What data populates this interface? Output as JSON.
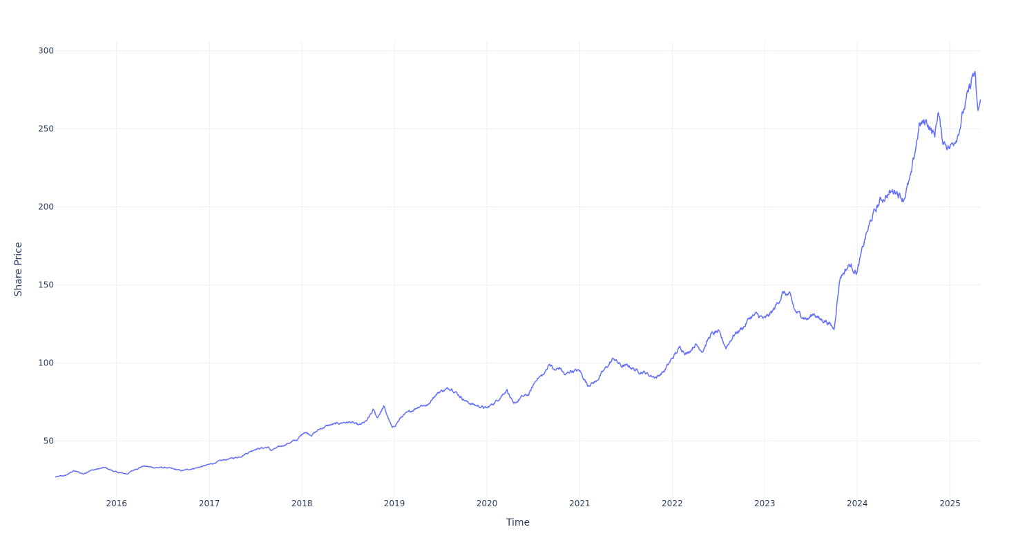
{
  "chart_data": {
    "type": "line",
    "title": "",
    "xlabel": "Time",
    "ylabel": "Share Price",
    "grid": true,
    "legend": "none",
    "colors": {
      "line": "#636efa",
      "grid": "#ebeef3",
      "text": "#2a3f5f"
    },
    "xlim": [
      "2015-05-04",
      "2025-05-02"
    ],
    "ylim": [
      14,
      306
    ],
    "x_ticks": [
      {
        "value": "2016-01-01",
        "label": "2016"
      },
      {
        "value": "2017-01-01",
        "label": "2017"
      },
      {
        "value": "2018-01-01",
        "label": "2018"
      },
      {
        "value": "2019-01-01",
        "label": "2019"
      },
      {
        "value": "2020-01-01",
        "label": "2020"
      },
      {
        "value": "2021-01-01",
        "label": "2021"
      },
      {
        "value": "2022-01-01",
        "label": "2022"
      },
      {
        "value": "2023-01-01",
        "label": "2023"
      },
      {
        "value": "2024-01-01",
        "label": "2024"
      },
      {
        "value": "2025-01-01",
        "label": "2025"
      }
    ],
    "y_ticks": [
      {
        "value": 50,
        "label": "50"
      },
      {
        "value": 100,
        "label": "100"
      },
      {
        "value": 150,
        "label": "150"
      },
      {
        "value": 200,
        "label": "200"
      },
      {
        "value": 250,
        "label": "250"
      },
      {
        "value": 300,
        "label": "300"
      }
    ],
    "series": [
      {
        "x": [
          "2015-05-04",
          "2015-06-15",
          "2015-07-15",
          "2015-08-24",
          "2015-09-15",
          "2015-10-15",
          "2015-11-15",
          "2016-01-01",
          "2016-02-11",
          "2016-03-15",
          "2016-04-15",
          "2016-06-01",
          "2016-07-15",
          "2016-08-15",
          "2016-09-15",
          "2016-10-15",
          "2016-11-15",
          "2017-01-01",
          "2017-03-01",
          "2017-05-01",
          "2017-07-01",
          "2017-08-20",
          "2017-09-01",
          "2017-10-15",
          "2017-12-15",
          "2018-01-10",
          "2018-02-09",
          "2018-03-15",
          "2018-04-15",
          "2018-05-15",
          "2018-06-15",
          "2018-07-15",
          "2018-08-15",
          "2018-09-15",
          "2018-10-10",
          "2018-10-25",
          "2018-11-20",
          "2018-12-24",
          "2019-02-01",
          "2019-03-15",
          "2019-04-15",
          "2019-05-15",
          "2019-06-01",
          "2019-07-01",
          "2019-08-15",
          "2019-09-15",
          "2019-10-15",
          "2019-11-15",
          "2020-01-01",
          "2020-02-10",
          "2020-03-20",
          "2020-04-15",
          "2020-05-15",
          "2020-06-15",
          "2020-07-15",
          "2020-08-15",
          "2020-09-03",
          "2020-09-24",
          "2020-10-15",
          "2020-11-05",
          "2020-11-25",
          "2021-01-01",
          "2021-02-01",
          "2021-03-05",
          "2021-04-15",
          "2021-05-15",
          "2021-06-15",
          "2021-07-15",
          "2021-08-15",
          "2021-09-15",
          "2021-10-05",
          "2021-11-01",
          "2021-12-01",
          "2022-01-01",
          "2022-02-01",
          "2022-03-01",
          "2022-04-01",
          "2022-05-01",
          "2022-06-01",
          "2022-07-01",
          "2022-08-01",
          "2022-09-01",
          "2022-10-15",
          "2022-11-01",
          "2022-12-01",
          "2023-01-01",
          "2023-02-01",
          "2023-03-15",
          "2023-04-10",
          "2023-05-01",
          "2023-06-01",
          "2023-06-20",
          "2023-07-15",
          "2023-08-05",
          "2023-09-01",
          "2023-10-01",
          "2023-10-25",
          "2023-12-01",
          "2023-12-31",
          "2024-02-01",
          "2024-03-01",
          "2024-04-01",
          "2024-05-01",
          "2024-06-01",
          "2024-07-01",
          "2024-08-01",
          "2024-09-01",
          "2024-10-01",
          "2024-11-01",
          "2024-11-15",
          "2024-12-01",
          "2025-01-01",
          "2025-02-01",
          "2025-03-01",
          "2025-03-20",
          "2025-04-01",
          "2025-04-10",
          "2025-04-20",
          "2025-05-02"
        ],
        "y": [
          27,
          28,
          31,
          29,
          31,
          32,
          33,
          30,
          29,
          32,
          34,
          33,
          33,
          32,
          31,
          32,
          33,
          35,
          38,
          40,
          45,
          46,
          44,
          47,
          51,
          56,
          54,
          58,
          60,
          61,
          62,
          62,
          60,
          63,
          70,
          65,
          72,
          58,
          66,
          70,
          73,
          73,
          78,
          82,
          84,
          79,
          75,
          73,
          71,
          76,
          83,
          73,
          78,
          80,
          90,
          93,
          100,
          95,
          97,
          92,
          95,
          95,
          86,
          88,
          97,
          103,
          98,
          98,
          95,
          94,
          92,
          91,
          95,
          103,
          110,
          106,
          112,
          108,
          118,
          120,
          110,
          118,
          124,
          129,
          131,
          128,
          133,
          145,
          143,
          133,
          130,
          128,
          132,
          128,
          127,
          122,
          155,
          163,
          158,
          180,
          194,
          204,
          208,
          211,
          205,
          220,
          252,
          255,
          245,
          262,
          243,
          238,
          247,
          265,
          276,
          285,
          283,
          260,
          268
        ],
        "values": [
          27,
          28,
          31,
          29,
          31,
          32,
          33,
          30,
          29,
          32,
          34,
          33,
          33,
          32,
          31,
          32,
          33,
          35,
          38,
          40,
          45,
          46,
          44,
          47,
          51,
          56,
          54,
          58,
          60,
          61,
          62,
          62,
          60,
          63,
          70,
          65,
          72,
          58,
          66,
          70,
          73,
          73,
          78,
          82,
          84,
          79,
          75,
          73,
          71,
          76,
          83,
          73,
          78,
          80,
          90,
          93,
          100,
          95,
          97,
          92,
          95,
          95,
          86,
          88,
          97,
          103,
          98,
          98,
          95,
          94,
          92,
          91,
          95,
          103,
          110,
          106,
          112,
          108,
          118,
          120,
          110,
          118,
          124,
          129,
          131,
          128,
          133,
          145,
          143,
          133,
          130,
          128,
          132,
          128,
          127,
          122,
          155,
          163,
          158,
          180,
          194,
          204,
          208,
          211,
          205,
          220,
          252,
          255,
          245,
          262,
          243,
          238,
          247,
          265,
          276,
          285,
          283,
          260,
          268
        ]
      }
    ]
  }
}
